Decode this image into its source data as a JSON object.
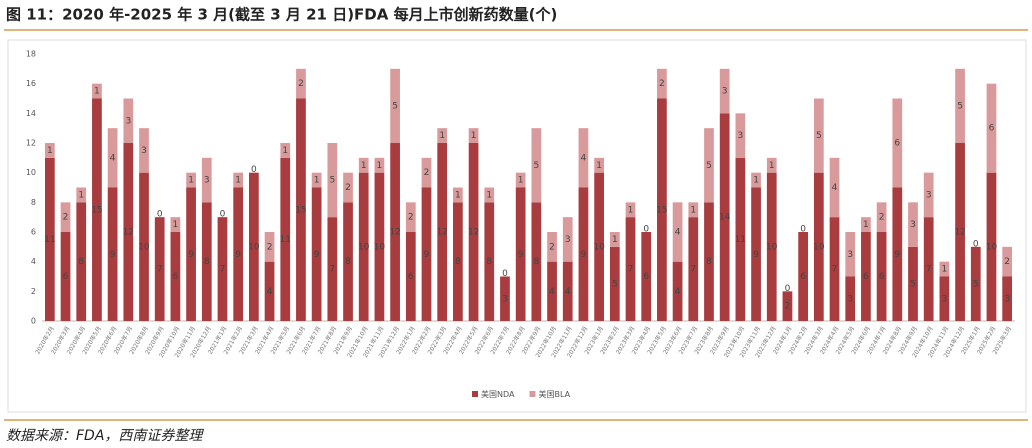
{
  "chart_data": {
    "type": "stacked_bar",
    "title": "图 11：2020 年-2025 年 3 月(截至 3 月 21 日)FDA 每月上市创新药数量(个)",
    "source": "数据来源：FDA，西南证券整理",
    "categories": [
      "2020年2月",
      "2020年3月",
      "2020年4月",
      "2020年5月",
      "2020年6月",
      "2020年7月",
      "2020年8月",
      "2020年9月",
      "2020年10月",
      "2020年11月",
      "2020年12月",
      "2021年1月",
      "2021年2月",
      "2021年3月",
      "2021年4月",
      "2021年5月",
      "2021年6月",
      "2021年7月",
      "2021年8月",
      "2021年9月",
      "2021年10月",
      "2021年11月",
      "2021年12月",
      "2022年1月",
      "2022年2月",
      "2022年3月",
      "2022年4月",
      "2022年5月",
      "2022年6月",
      "2022年7月",
      "2022年8月",
      "2022年9月",
      "2022年10月",
      "2022年11月",
      "2022年12月",
      "2023年1月",
      "2023年2月",
      "2023年3月",
      "2023年4月",
      "2023年5月",
      "2023年6月",
      "2023年7月",
      "2023年8月",
      "2023年9月",
      "2023年10月",
      "2023年11月",
      "2023年12月",
      "2024年1月",
      "2024年2月",
      "2024年3月",
      "2024年4月",
      "2024年5月",
      "2024年6月",
      "2024年7月",
      "2024年8月",
      "2024年9月",
      "2024年10月",
      "2024年11月",
      "2024年12月",
      "2025年1月",
      "2025年2月",
      "2025年3月"
    ],
    "series": [
      {
        "name": "美国NDA",
        "color": "#a83c3f",
        "values": [
          11,
          6,
          8,
          15,
          9,
          12,
          10,
          7,
          6,
          9,
          8,
          7,
          9,
          10,
          4,
          11,
          15,
          9,
          7,
          8,
          10,
          10,
          12,
          6,
          9,
          12,
          8,
          12,
          8,
          3,
          9,
          8,
          4,
          4,
          9,
          10,
          5,
          7,
          6,
          15,
          4,
          7,
          8,
          14,
          11,
          9,
          10,
          2,
          6,
          10,
          7,
          3,
          6,
          6,
          9,
          5,
          7,
          3,
          12,
          5,
          10,
          3
        ]
      },
      {
        "name": "美国BLA",
        "color": "#d99a9c",
        "values": [
          1,
          2,
          1,
          1,
          4,
          3,
          3,
          0,
          1,
          1,
          3,
          0,
          1,
          0,
          2,
          1,
          2,
          1,
          5,
          2,
          1,
          1,
          5,
          2,
          2,
          1,
          1,
          1,
          1,
          0,
          1,
          5,
          2,
          3,
          4,
          1,
          1,
          1,
          0,
          2,
          4,
          1,
          5,
          3,
          3,
          1,
          1,
          0,
          0,
          5,
          4,
          3,
          1,
          2,
          6,
          3,
          3,
          1,
          5,
          0,
          6,
          2
        ]
      }
    ],
    "ylim": [
      0,
      18
    ],
    "yticks": [
      0,
      2,
      4,
      6,
      8,
      10,
      12,
      14,
      16,
      18
    ],
    "legend": "bottom"
  }
}
